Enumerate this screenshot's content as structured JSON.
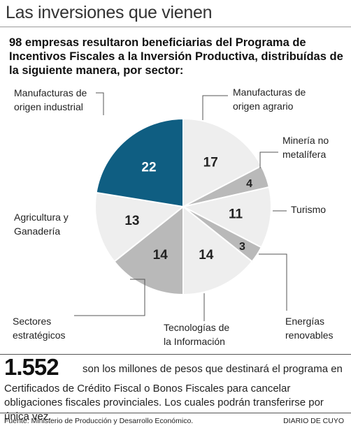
{
  "header": {
    "title": "Las inversiones que vienen",
    "subtitle": "98 empresas resultaron beneficiarias del Programa de Incentivos Fiscales a la Inversión Productiva, distribuídas de la siguiente manera, por sector:"
  },
  "chart_data": {
    "type": "pie",
    "total": 98,
    "slices": [
      {
        "label": [
          "Manufacturas de",
          "origen agrario"
        ],
        "value": 17,
        "color": "#eeeeee"
      },
      {
        "label": [
          "Minería no",
          "metalífera"
        ],
        "value": 4,
        "color": "#b9b9b9"
      },
      {
        "label": [
          "Turismo"
        ],
        "value": 11,
        "color": "#eeeeee"
      },
      {
        "label": [
          "Energías",
          "renovables"
        ],
        "value": 3,
        "color": "#b9b9b9"
      },
      {
        "label": [
          "Tecnologías de",
          "la Información"
        ],
        "value": 14,
        "color": "#eeeeee"
      },
      {
        "label": [
          "Sectores",
          "estratégicos"
        ],
        "value": 14,
        "color": "#b9b9b9"
      },
      {
        "label": [
          "Agricultura y",
          "Ganadería"
        ],
        "value": 13,
        "color": "#eeeeee"
      },
      {
        "label": [
          "Manufacturas de",
          "origen industrial"
        ],
        "value": 22,
        "color": "#0f5e82"
      }
    ]
  },
  "note": {
    "big_number": "1.552",
    "line1": "son los millones de pesos que destinará el programa en",
    "line2": "Certificados de Crédito Fiscal o Bonos Fiscales para cancelar obligaciones fiscales provinciales. Los cuales podrán transferirse por única vez."
  },
  "footer": {
    "source": "Fuente: Ministerio de Producción y Desarrollo Económico.",
    "brand": "DIARIO DE CUYO"
  }
}
